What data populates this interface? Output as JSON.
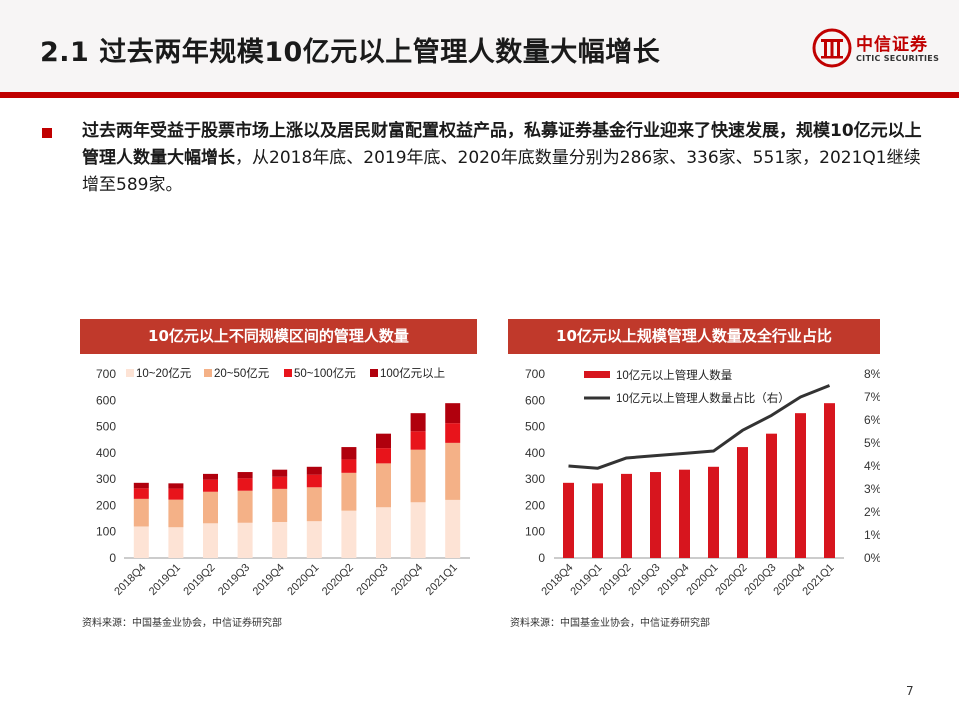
{
  "slide": {
    "title": "2.1 过去两年规模10亿元以上管理人数量大幅增长",
    "paragraph_bold": "过去两年受益于股票市场上涨以及居民财富配置权益产品，私募证券基金行业迎来了快速发展，规模10亿元以上管理人数量大幅增长",
    "paragraph_rest": "，从2018年底、2019年底、2020年底数量分别为286家、336家、551家，2021Q1继续增至589家。",
    "page_number": "7"
  },
  "logo": {
    "cn": "中信证券",
    "en": "CITIC SECURITIES"
  },
  "colors": {
    "brand_red": "#c00000",
    "panel_title_bg": "#c0392b",
    "seg_10_20": "#fde3d5",
    "seg_20_50": "#f4b187",
    "seg_50_100": "#e8141b",
    "seg_100_plus": "#b0000d",
    "bar_red": "#d7151e",
    "line_dark": "#333333"
  },
  "chart_data": [
    {
      "type": "bar",
      "stacked": true,
      "title": "10亿元以上不同规模区间的管理人数量",
      "categories": [
        "2018Q4",
        "2019Q1",
        "2019Q2",
        "2019Q3",
        "2019Q4",
        "2020Q1",
        "2020Q2",
        "2020Q3",
        "2020Q4",
        "2021Q1"
      ],
      "series": [
        {
          "name": "10~20亿元",
          "values": [
            120,
            117,
            132,
            134,
            137,
            140,
            180,
            193,
            212,
            221
          ]
        },
        {
          "name": "20~50亿元",
          "values": [
            105,
            105,
            120,
            122,
            126,
            129,
            144,
            167,
            200,
            217
          ]
        },
        {
          "name": "50~100亿元",
          "values": [
            40,
            42,
            46,
            47,
            46,
            48,
            51,
            58,
            70,
            75
          ]
        },
        {
          "name": "100亿元以上",
          "values": [
            21,
            20,
            22,
            24,
            27,
            30,
            47,
            55,
            69,
            76
          ]
        }
      ],
      "yticks": [
        "0",
        "100",
        "200",
        "300",
        "400",
        "500",
        "600",
        "700"
      ],
      "ylim": [
        0,
        700
      ],
      "legend_position": "top",
      "grid": false,
      "source": "资料来源：中国基金业协会，中信证券研究部"
    },
    {
      "type": "bar+line",
      "title": "10亿元以上规模管理人数量及全行业占比",
      "categories": [
        "2018Q4",
        "2019Q1",
        "2019Q2",
        "2019Q3",
        "2019Q4",
        "2020Q1",
        "2020Q2",
        "2020Q3",
        "2020Q4",
        "2021Q1"
      ],
      "series": [
        {
          "name": "10亿元以上管理人数量",
          "type": "bar",
          "axis": "left",
          "values": [
            286,
            284,
            320,
            327,
            336,
            347,
            422,
            473,
            551,
            589
          ]
        },
        {
          "name": "10亿元以上管理人数量占比（右）",
          "type": "line",
          "axis": "right",
          "values": [
            4.0,
            3.9,
            4.35,
            4.45,
            4.55,
            4.65,
            5.55,
            6.2,
            7.0,
            7.5
          ]
        }
      ],
      "yticks_left": [
        "0",
        "100",
        "200",
        "300",
        "400",
        "500",
        "600",
        "700"
      ],
      "yticks_right": [
        "0%",
        "1%",
        "2%",
        "3%",
        "4%",
        "5%",
        "6%",
        "7%",
        "8%"
      ],
      "ylim_left": [
        0,
        700
      ],
      "ylim_right": [
        0,
        8
      ],
      "legend_position": "top-left",
      "grid": false,
      "source": "资料来源：中国基金业协会，中信证券研究部"
    }
  ]
}
